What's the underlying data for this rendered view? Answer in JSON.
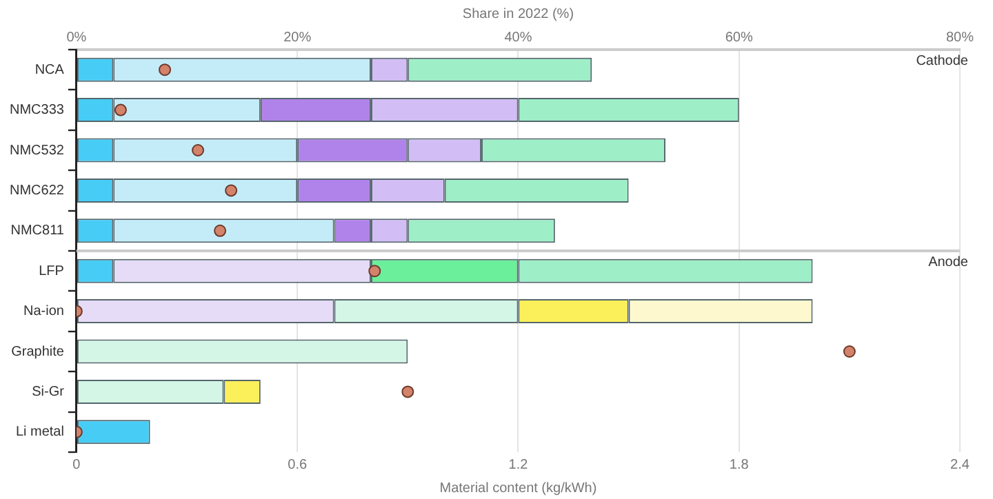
{
  "chart_data": {
    "type": "bar",
    "orientation": "horizontal",
    "stacked": true,
    "xlabel": "Material content (kg/kWh)",
    "x2label": "Share in 2022 (%)",
    "categories": [
      "NCA",
      "NMC333",
      "NMC532",
      "NMC622",
      "NMC811",
      "LFP",
      "Na-ion",
      "Graphite",
      "Si-Gr",
      "Li metal"
    ],
    "series": [
      {
        "color": "#47cdf5",
        "values": [
          0.1,
          0.1,
          0.1,
          0.1,
          0.1,
          0.1,
          null,
          null,
          null,
          0.2
        ]
      },
      {
        "color": "#c4ecf8",
        "values": [
          0.7,
          0.4,
          0.5,
          0.5,
          0.6,
          null,
          null,
          null,
          null,
          null
        ]
      },
      {
        "color": "#b083ea",
        "values": [
          null,
          0.3,
          0.3,
          0.2,
          0.1,
          null,
          null,
          null,
          null,
          null
        ]
      },
      {
        "color": "#d3bdf5",
        "values": [
          0.1,
          0.4,
          0.2,
          0.2,
          0.1,
          null,
          null,
          null,
          null,
          null
        ]
      },
      {
        "color": "#e6dcf7",
        "values": [
          null,
          null,
          null,
          null,
          null,
          0.7,
          0.7,
          null,
          null,
          null
        ]
      },
      {
        "color": "#6bef9a",
        "values": [
          null,
          null,
          null,
          null,
          null,
          0.4,
          null,
          null,
          null,
          null
        ]
      },
      {
        "color": "#9eeec8",
        "values": [
          0.5,
          0.6,
          0.5,
          0.5,
          0.4,
          0.8,
          null,
          null,
          null,
          null
        ]
      },
      {
        "color": "#d4f6e6",
        "values": [
          null,
          null,
          null,
          null,
          null,
          null,
          0.5,
          0.9,
          0.4,
          null
        ]
      },
      {
        "color": "#fbef5a",
        "values": [
          null,
          null,
          null,
          null,
          null,
          null,
          0.3,
          null,
          0.1,
          null
        ]
      },
      {
        "color": "#fef8cf",
        "values": [
          null,
          null,
          null,
          null,
          null,
          null,
          0.5,
          null,
          null,
          null
        ]
      },
      {
        "type": "scatter",
        "axis": "x2",
        "color": "#d4826a",
        "values": [
          8,
          4,
          11,
          14,
          13,
          27,
          0,
          70,
          30,
          0
        ]
      }
    ],
    "xlim": [
      0,
      2.4
    ],
    "xticks": [
      0,
      0.6,
      1.2,
      1.8,
      2.4
    ],
    "x2lim": [
      0,
      80
    ],
    "x2ticks": [
      {
        "value": 0,
        "label": "0%"
      },
      {
        "value": 20,
        "label": "20%"
      },
      {
        "value": 40,
        "label": "40%"
      },
      {
        "value": 60,
        "label": "60%"
      },
      {
        "value": 80,
        "label": "80%"
      }
    ],
    "grid": "x",
    "marker": "circle",
    "legend": false,
    "annotations": [
      "Cathode"
    ],
    "ref_lines": [
      {
        "axis": "y",
        "value": "LFP",
        "label": "Anode",
        "color": "#cccccc"
      }
    ]
  }
}
